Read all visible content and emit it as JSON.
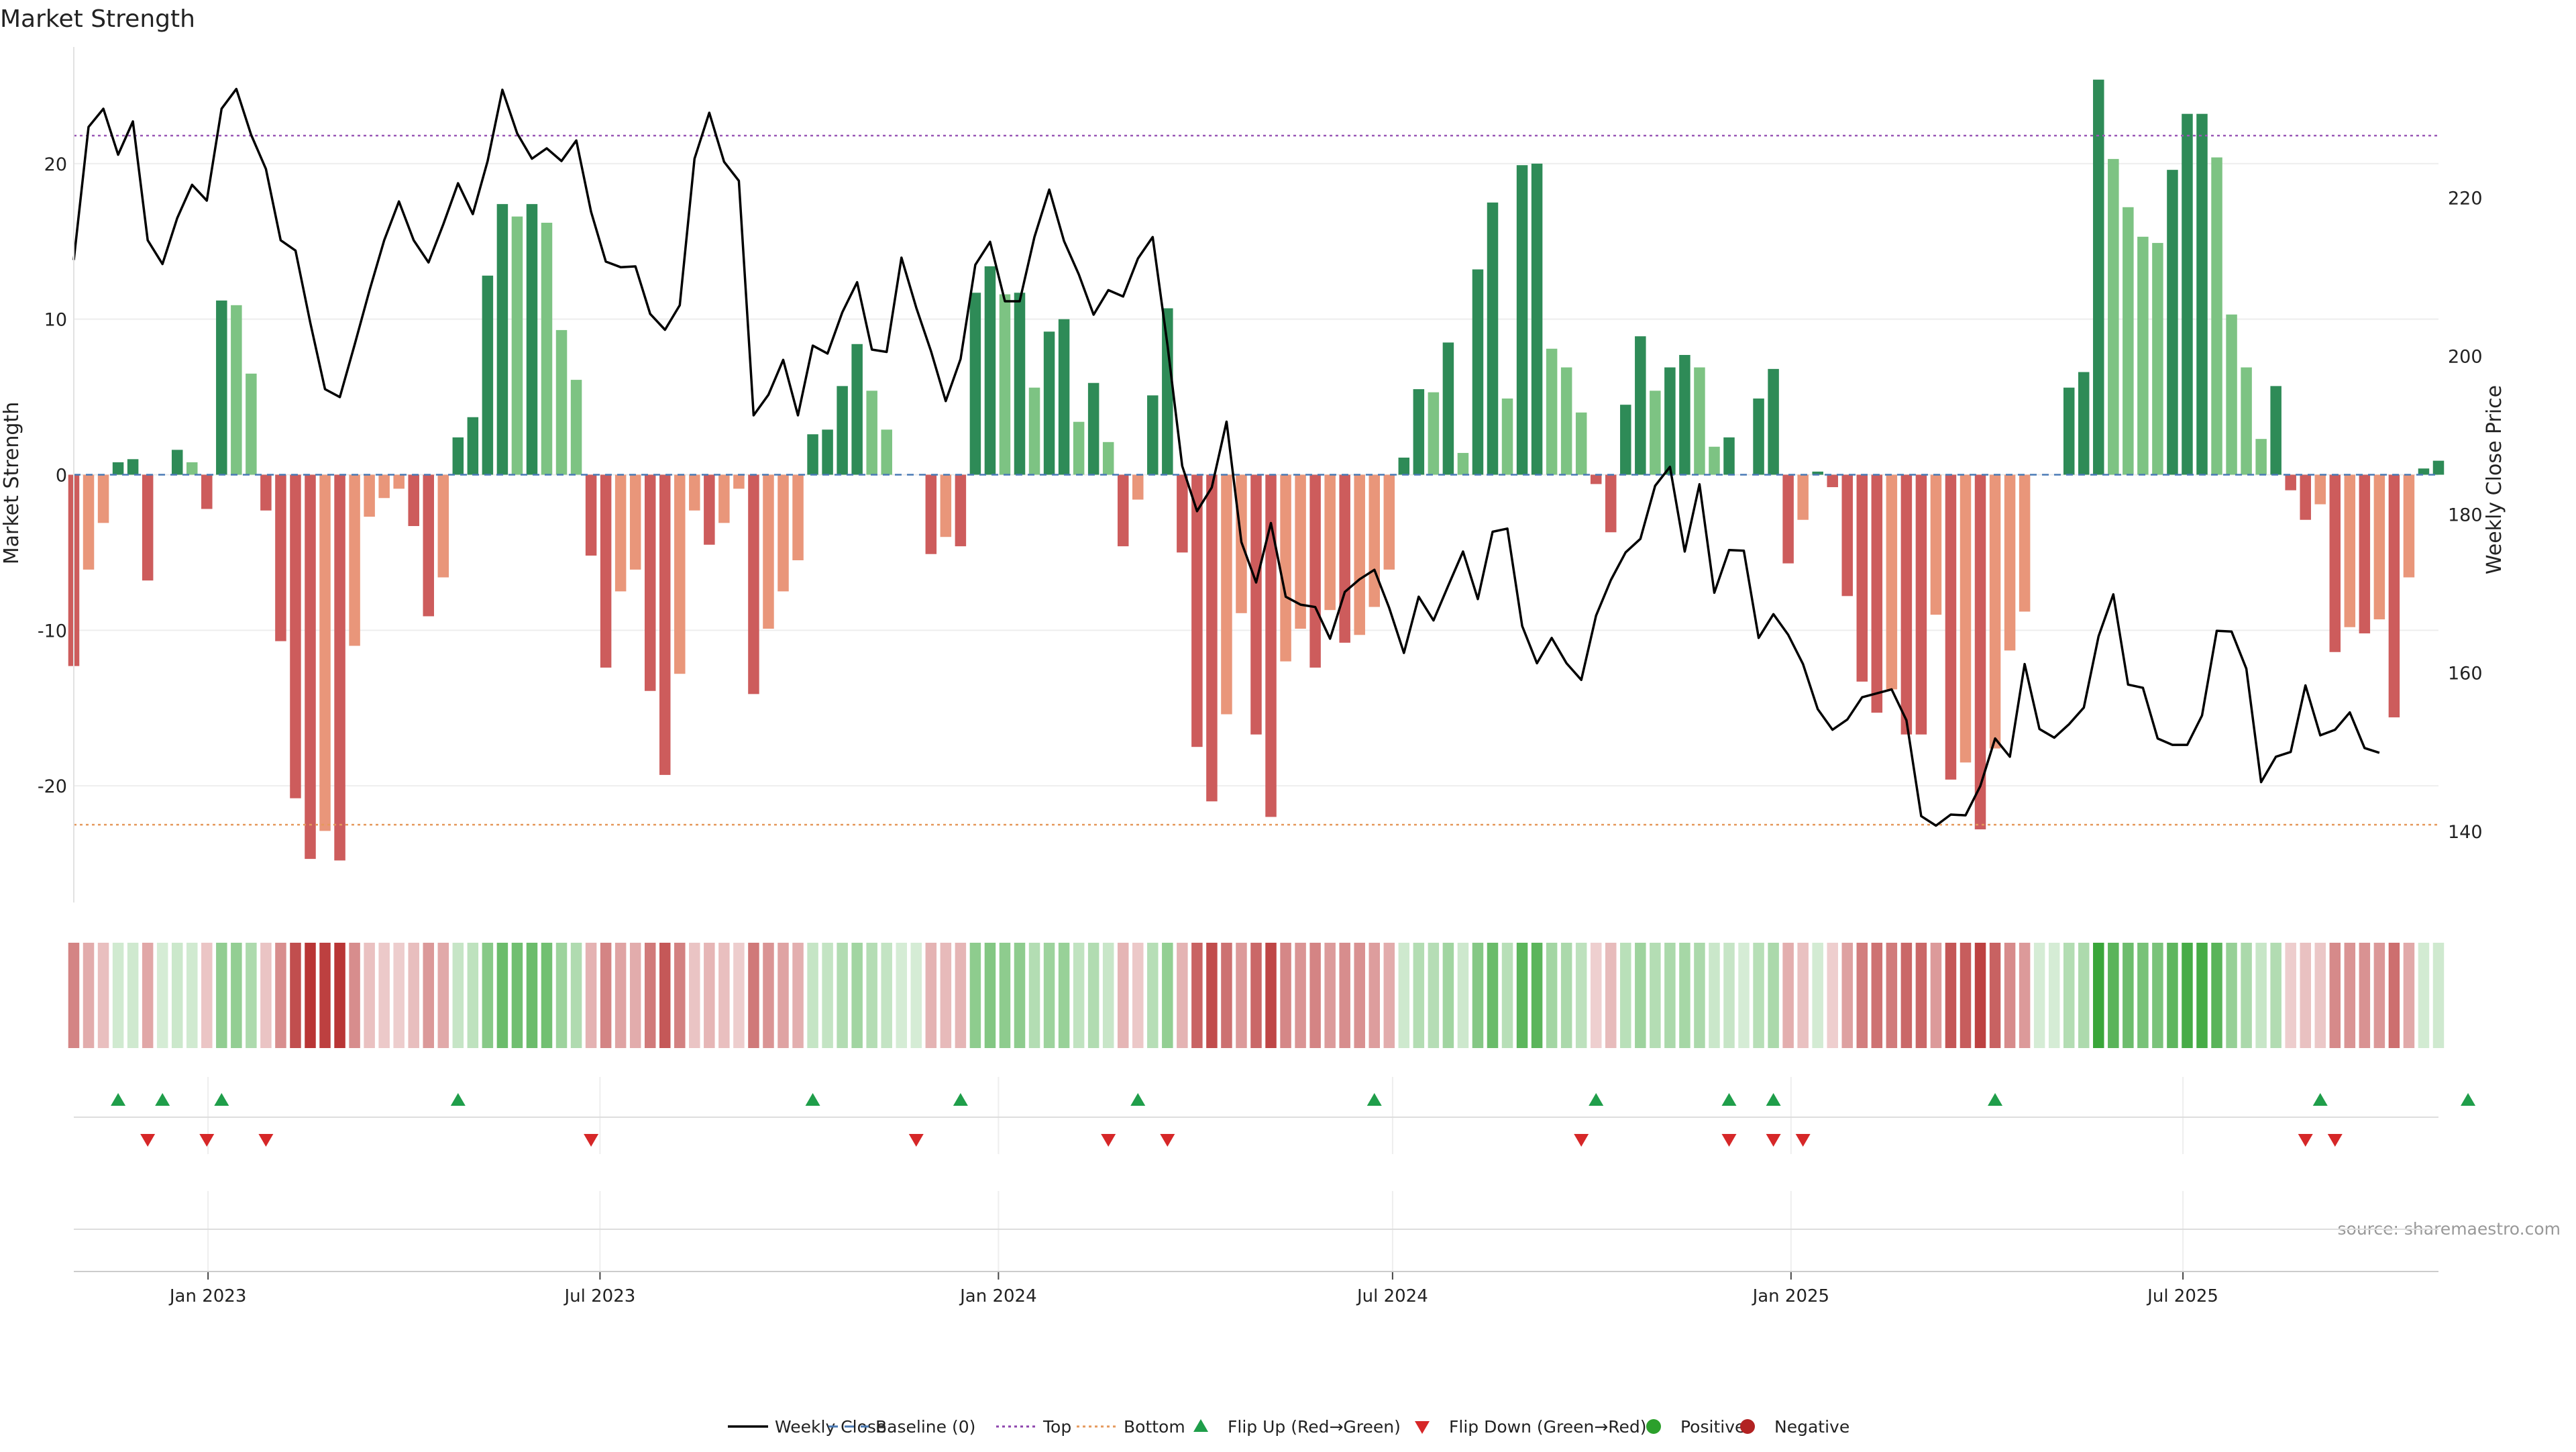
{
  "chart_data": {
    "type": "bar",
    "title": "Market Strength",
    "ylabel": "Market Strength",
    "y2label": "Weekly Close Price",
    "source": "source: sharemaestro.com",
    "ylim": [
      -27.5,
      27.5
    ],
    "y2lim": [
      131,
      239
    ],
    "yticks": [
      -20,
      -10,
      0,
      10,
      20
    ],
    "y2ticks": [
      140,
      160,
      180,
      200,
      220
    ],
    "ytick_labels": [
      "-20",
      "-10",
      "0",
      "10",
      "20"
    ],
    "y2tick_labels": [
      "140",
      "160",
      "180",
      "200",
      "220"
    ],
    "top_threshold": 21.8,
    "bottom_threshold": -22.5,
    "x_start": "2022-10-31",
    "x_end": "2025-10-27",
    "xticks": [
      {
        "date": "2023-01-01",
        "label": "Jan 2023"
      },
      {
        "date": "2023-07-01",
        "label": "Jul 2023"
      },
      {
        "date": "2024-01-01",
        "label": "Jan 2024"
      },
      {
        "date": "2024-07-01",
        "label": "Jul 2024"
      },
      {
        "date": "2025-01-01",
        "label": "Jan 2025"
      },
      {
        "date": "2025-07-01",
        "label": "Jul 2025"
      }
    ],
    "series": [
      {
        "name": "Market Strength",
        "values": [
          -12.3,
          -6.1,
          -3.1,
          0.8,
          1.0,
          -6.8,
          0.0,
          1.6,
          0.8,
          -2.2,
          11.2,
          10.9,
          6.5,
          -2.3,
          -10.7,
          -20.8,
          -24.7,
          -22.9,
          -24.8,
          -11.0,
          -2.7,
          -1.5,
          -0.9,
          -3.3,
          -9.1,
          -6.6,
          2.4,
          3.7,
          12.8,
          17.4,
          16.6,
          17.4,
          16.2,
          9.3,
          6.1,
          -5.2,
          -12.4,
          -7.5,
          -6.1,
          -13.9,
          -19.3,
          -12.8,
          -2.3,
          -4.5,
          -3.1,
          -0.9,
          -14.1,
          -9.9,
          -7.5,
          -5.5,
          2.6,
          2.9,
          5.7,
          8.4,
          5.4,
          2.9,
          0.0,
          0.0,
          -5.1,
          -4.0,
          -4.6,
          11.7,
          13.4,
          11.6,
          11.7,
          5.6,
          9.2,
          10.0,
          3.4,
          5.9,
          2.1,
          -4.6,
          -1.6,
          5.1,
          10.7,
          -5.0,
          -17.5,
          -21.0,
          -15.4,
          -8.9,
          -16.7,
          -22.0,
          -12.0,
          -9.9,
          -12.4,
          -8.7,
          -10.8,
          -10.3,
          -8.5,
          -6.1,
          1.1,
          5.5,
          5.3,
          8.5,
          1.4,
          13.2,
          17.5,
          4.9,
          19.9,
          20.0,
          8.1,
          6.9,
          4.0,
          -0.6,
          -3.7,
          4.5,
          8.9,
          5.4,
          6.9,
          7.7,
          6.9,
          1.8,
          2.4,
          0.0,
          4.9,
          6.8,
          -5.7,
          -2.9,
          0.2,
          -0.8,
          -7.8,
          -13.3,
          -15.3,
          -13.8,
          -16.7,
          -16.7,
          -9.0,
          -19.6,
          -18.5,
          -22.8,
          -17.6,
          -11.3,
          -8.8,
          0.0,
          0.0,
          5.6,
          6.6,
          25.4,
          20.3,
          17.2,
          15.3,
          14.9,
          19.6,
          23.2,
          23.2,
          20.4,
          10.3,
          6.9,
          2.3,
          5.7,
          -1.0,
          -2.9,
          -1.9,
          -11.4,
          -9.8,
          -10.2,
          -9.3,
          -15.6,
          -6.6,
          0.4,
          0.9
        ]
      },
      {
        "name": "Weekly Close",
        "values": [
          212.1,
          228.9,
          231.2,
          225.4,
          229.6,
          214.6,
          211.6,
          217.4,
          221.6,
          219.6,
          231.2,
          233.7,
          227.9,
          223.6,
          214.6,
          213.3,
          204.2,
          195.8,
          194.8,
          201.4,
          208.2,
          214.6,
          219.5,
          214.6,
          211.8,
          216.6,
          221.8,
          217.9,
          224.6,
          233.6,
          228.1,
          224.9,
          226.2,
          224.6,
          227.2,
          218.2,
          211.9,
          211.2,
          211.3,
          205.3,
          203.3,
          206.4,
          224.9,
          230.7,
          224.5,
          222.1,
          192.5,
          195.1,
          199.5,
          192.5,
          201.3,
          200.3,
          205.5,
          209.3,
          200.8,
          200.5,
          212.4,
          206.1,
          200.6,
          194.3,
          199.6,
          211.5,
          214.4,
          206.9,
          206.9,
          215.0,
          221.0,
          214.5,
          210.3,
          205.2,
          208.3,
          207.5,
          212.3,
          215.0,
          201.4,
          186.1,
          180.4,
          183.4,
          191.7,
          176.5,
          171.4,
          178.9,
          169.6,
          168.6,
          168.3,
          164.3,
          170.2,
          171.8,
          173.0,
          168.2,
          162.5,
          169.6,
          166.6,
          171.0,
          175.3,
          169.3,
          177.8,
          178.2,
          165.9,
          161.2,
          164.4,
          161.2,
          159.1,
          167.2,
          171.7,
          175.2,
          176.9,
          183.6,
          186.0,
          175.3,
          183.8,
          170.1,
          175.5,
          175.4,
          164.4,
          167.4,
          164.8,
          161.1,
          155.4,
          152.8,
          154.1,
          156.9,
          157.4,
          157.9,
          154.0,
          141.9,
          140.7,
          142.1,
          142.0,
          145.7,
          151.7,
          149.4,
          161.1,
          152.9,
          151.8,
          153.5,
          155.6,
          164.6,
          169.9,
          158.5,
          158.1,
          151.7,
          150.9,
          150.9,
          154.6,
          165.3,
          165.2,
          160.5,
          146.2,
          149.4,
          150.0,
          158.4,
          152.1,
          152.8,
          155.0,
          150.5,
          149.9
        ]
      }
    ],
    "flip_up_indices": [
      3,
      6,
      10,
      26,
      50,
      60,
      72,
      88,
      103,
      112,
      115,
      130,
      152,
      162
    ],
    "flip_down_indices": [
      5,
      9,
      13,
      35,
      57,
      70,
      74,
      102,
      112,
      115,
      117,
      151,
      153
    ],
    "legend": {
      "placement": "bottom-center",
      "entries": [
        {
          "label": "Weekly Close",
          "marker": "line",
          "color": "#000000"
        },
        {
          "label": "Baseline (0)",
          "marker": "dash",
          "color": "#4a7ab5"
        },
        {
          "label": "Top",
          "marker": "dot",
          "color": "#8e44ad"
        },
        {
          "label": "Bottom",
          "marker": "dot",
          "color": "#e5995c"
        },
        {
          "label": "Flip Up (Red→Green)",
          "marker": "triangle-up",
          "color": "#1f9e4a"
        },
        {
          "label": "Flip Down (Green→Red)",
          "marker": "triangle-down",
          "color": "#d62728"
        },
        {
          "label": "Positive",
          "marker": "circle",
          "color": "#2ca02c"
        },
        {
          "label": "Negative",
          "marker": "circle",
          "color": "#b22222"
        }
      ]
    },
    "colors": {
      "pos_strong": "#2e8b57",
      "pos_light": "#7dc383",
      "neg_strong": "#cd5c5c",
      "neg_light": "#e9967a",
      "price_line": "#000000",
      "top_line": "#9b59b6",
      "bottom_line": "#e5995c",
      "baseline": "#4a7ab5",
      "grid": "#eeeeee",
      "source_text": "#999999"
    },
    "grid": true
  }
}
